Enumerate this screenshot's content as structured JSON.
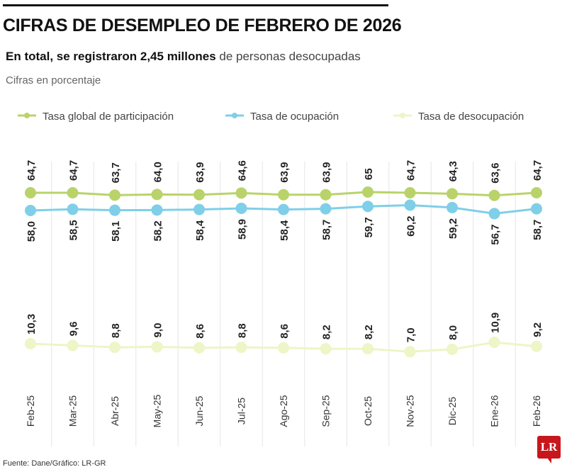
{
  "title": "CIFRAS DE DESEMPLEO DE FEBRERO DE 2026",
  "subtitle_bold": "En total, se registraron 2,45 millones",
  "subtitle_rest": " de personas desocupadas",
  "note": "Cifras en porcentaje",
  "source": "Fuente: Dane/Gráfico: LR-GR",
  "logo": "LR",
  "chart_data": {
    "type": "line",
    "title": "CIFRAS DE DESEMPLEO DE FEBRERO DE 2026",
    "ylabel": "Cifras en porcentaje",
    "legend_position": "top",
    "grid": "vertical",
    "categories": [
      "Feb-25",
      "Mar-25",
      "Abr-25",
      "May-25",
      "Jun-25",
      "Jul-25",
      "Ago-25",
      "Sep-25",
      "Oct-25",
      "Nov-25",
      "Dic-25",
      "Ene-26",
      "Feb-26"
    ],
    "series": [
      {
        "name": "Tasa global de participación",
        "color": "#b9d36a",
        "values": [
          64.7,
          64.7,
          63.7,
          64.0,
          63.9,
          64.6,
          63.9,
          63.9,
          65,
          64.7,
          64.3,
          63.6,
          64.7
        ],
        "labels": [
          "64,7",
          "64,7",
          "63,7",
          "64,0",
          "63,9",
          "64,6",
          "63,9",
          "63,9",
          "65",
          "64,7",
          "64,3",
          "63,6",
          "64,7"
        ]
      },
      {
        "name": "Tasa de ocupación",
        "color": "#7fcfe8",
        "values": [
          58.0,
          58.5,
          58.1,
          58.2,
          58.4,
          58.9,
          58.4,
          58.7,
          59.7,
          60.2,
          59.2,
          56.7,
          58.7
        ],
        "labels": [
          "58,0",
          "58,5",
          "58,1",
          "58,2",
          "58,4",
          "58,9",
          "58,4",
          "58,7",
          "59,7",
          "60,2",
          "59,2",
          "56,7",
          "58,7"
        ]
      },
      {
        "name": "Tasa de desocupación",
        "color": "#eef5c6",
        "values": [
          10.3,
          9.6,
          8.8,
          9.0,
          8.6,
          8.8,
          8.6,
          8.2,
          8.2,
          7.0,
          8.0,
          10.9,
          9.2
        ],
        "labels": [
          "10,3",
          "9,6",
          "8,8",
          "9,0",
          "8,6",
          "8,8",
          "8,6",
          "8,2",
          "8,2",
          "7,0",
          "8,0",
          "10,9",
          "9,2"
        ]
      }
    ]
  }
}
